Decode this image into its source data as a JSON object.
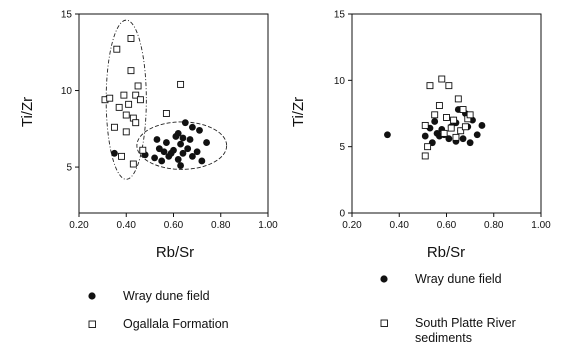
{
  "chart_data": [
    {
      "type": "scatter",
      "xlabel": "Rb/Sr",
      "ylabel": "Ti/Zr",
      "xlim": [
        0.2,
        1.0
      ],
      "ylim": [
        2,
        15
      ],
      "x_ticks": [
        "0.20",
        "0.40",
        "0.60",
        "0.80",
        "1.00"
      ],
      "y_ticks": [
        "5",
        "10",
        "15"
      ],
      "grid": false,
      "legend_position": "below",
      "series": [
        {
          "name": "Wray dune field",
          "marker": "filled-circle",
          "points": [
            [
              0.35,
              5.9
            ],
            [
              0.48,
              5.8
            ],
            [
              0.52,
              5.6
            ],
            [
              0.53,
              6.8
            ],
            [
              0.54,
              6.2
            ],
            [
              0.55,
              5.4
            ],
            [
              0.56,
              6.0
            ],
            [
              0.57,
              6.6
            ],
            [
              0.58,
              5.7
            ],
            [
              0.59,
              5.9
            ],
            [
              0.6,
              6.1
            ],
            [
              0.61,
              7.0
            ],
            [
              0.62,
              7.2
            ],
            [
              0.62,
              5.5
            ],
            [
              0.63,
              6.5
            ],
            [
              0.63,
              5.1
            ],
            [
              0.64,
              6.9
            ],
            [
              0.64,
              5.9
            ],
            [
              0.65,
              7.9
            ],
            [
              0.66,
              6.2
            ],
            [
              0.67,
              6.8
            ],
            [
              0.68,
              5.7
            ],
            [
              0.68,
              7.6
            ],
            [
              0.7,
              6.0
            ],
            [
              0.71,
              7.4
            ],
            [
              0.72,
              5.4
            ],
            [
              0.74,
              6.6
            ]
          ]
        },
        {
          "name": "Ogallala Formation",
          "marker": "open-square",
          "points": [
            [
              0.31,
              9.4
            ],
            [
              0.33,
              9.5
            ],
            [
              0.35,
              7.6
            ],
            [
              0.36,
              12.7
            ],
            [
              0.37,
              8.9
            ],
            [
              0.38,
              5.7
            ],
            [
              0.39,
              9.7
            ],
            [
              0.4,
              8.4
            ],
            [
              0.4,
              7.3
            ],
            [
              0.41,
              9.1
            ],
            [
              0.42,
              13.4
            ],
            [
              0.42,
              11.3
            ],
            [
              0.43,
              8.2
            ],
            [
              0.43,
              5.2
            ],
            [
              0.44,
              9.7
            ],
            [
              0.44,
              7.9
            ],
            [
              0.45,
              10.3
            ],
            [
              0.46,
              9.4
            ],
            [
              0.47,
              6.1
            ],
            [
              0.57,
              8.5
            ],
            [
              0.63,
              10.4
            ]
          ]
        }
      ],
      "ellipses": [
        {
          "center": [
            0.4,
            9.4
          ],
          "radii": [
            0.085,
            5.2
          ]
        },
        {
          "center": [
            0.635,
            6.4
          ],
          "radii": [
            0.19,
            1.55
          ]
        }
      ]
    },
    {
      "type": "scatter",
      "xlabel": "Rb/Sr",
      "ylabel": "Ti/Zr",
      "xlim": [
        0.2,
        1.0
      ],
      "ylim": [
        0,
        15
      ],
      "x_ticks": [
        "0.20",
        "0.40",
        "0.60",
        "0.80",
        "1.00"
      ],
      "y_ticks": [
        "0",
        "5",
        "10",
        "15"
      ],
      "grid": false,
      "legend_position": "below",
      "series": [
        {
          "name": "Wray dune field",
          "marker": "filled-circle",
          "points": [
            [
              0.35,
              5.9
            ],
            [
              0.51,
              5.8
            ],
            [
              0.53,
              6.4
            ],
            [
              0.54,
              5.3
            ],
            [
              0.55,
              6.9
            ],
            [
              0.56,
              6.0
            ],
            [
              0.57,
              5.8
            ],
            [
              0.58,
              6.3
            ],
            [
              0.59,
              5.9
            ],
            [
              0.6,
              7.2
            ],
            [
              0.61,
              5.6
            ],
            [
              0.62,
              6.5
            ],
            [
              0.63,
              7.0
            ],
            [
              0.64,
              5.4
            ],
            [
              0.64,
              6.8
            ],
            [
              0.65,
              7.8
            ],
            [
              0.66,
              6.2
            ],
            [
              0.67,
              5.6
            ],
            [
              0.68,
              7.5
            ],
            [
              0.69,
              6.5
            ],
            [
              0.7,
              5.3
            ],
            [
              0.71,
              7.0
            ],
            [
              0.73,
              5.9
            ],
            [
              0.75,
              6.6
            ]
          ]
        },
        {
          "name": "South Platte River sediments",
          "marker": "open-square",
          "points": [
            [
              0.51,
              4.3
            ],
            [
              0.51,
              6.6
            ],
            [
              0.52,
              5.0
            ],
            [
              0.53,
              9.6
            ],
            [
              0.55,
              7.4
            ],
            [
              0.57,
              8.1
            ],
            [
              0.58,
              10.1
            ],
            [
              0.59,
              6.0
            ],
            [
              0.6,
              7.2
            ],
            [
              0.61,
              9.6
            ],
            [
              0.62,
              6.4
            ],
            [
              0.63,
              7.0
            ],
            [
              0.64,
              5.7
            ],
            [
              0.65,
              8.6
            ],
            [
              0.66,
              6.2
            ],
            [
              0.67,
              7.8
            ],
            [
              0.68,
              6.5
            ],
            [
              0.69,
              7.1
            ],
            [
              0.7,
              7.4
            ]
          ]
        }
      ]
    }
  ],
  "legends": [
    {
      "items": [
        {
          "marker": "filled-circle",
          "label": "Wray dune field"
        },
        {
          "marker": "open-square",
          "label": "Ogallala Formation"
        }
      ]
    },
    {
      "items": [
        {
          "marker": "filled-circle",
          "label": "Wray dune field"
        },
        {
          "marker": "open-square",
          "label": "South Platte River",
          "label2": "sediments"
        }
      ]
    }
  ]
}
